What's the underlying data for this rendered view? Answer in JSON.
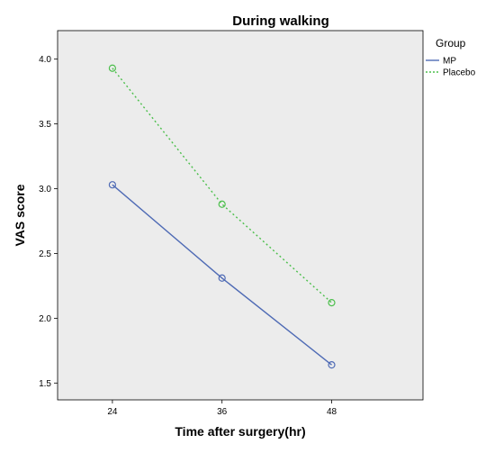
{
  "chart_data": {
    "type": "line",
    "title": "During walking",
    "xlabel": "Time after surgery(hr)",
    "ylabel": "VAS score",
    "x": [
      24,
      36,
      48
    ],
    "x_tick_labels": [
      "24",
      "36",
      "48"
    ],
    "y_ticks": [
      1.5,
      2.0,
      2.5,
      3.0,
      3.5,
      4.0
    ],
    "y_tick_labels": [
      "1.5",
      "2.0",
      "2.5",
      "3.0",
      "3.5",
      "4.0"
    ],
    "xlim": [
      18,
      58
    ],
    "ylim": [
      1.37,
      4.22
    ],
    "grid": false,
    "legend": {
      "title": "Group",
      "position": "right"
    },
    "series": [
      {
        "name": "MP",
        "values": [
          3.03,
          2.31,
          1.64
        ],
        "color": "#4f6bb5",
        "line_style": "solid",
        "marker": "open-circle"
      },
      {
        "name": "Placebo",
        "values": [
          3.93,
          2.88,
          2.12
        ],
        "color": "#4cbf4c",
        "line_style": "dotted",
        "marker": "open-circle"
      }
    ],
    "plot_background": "#ececec"
  }
}
